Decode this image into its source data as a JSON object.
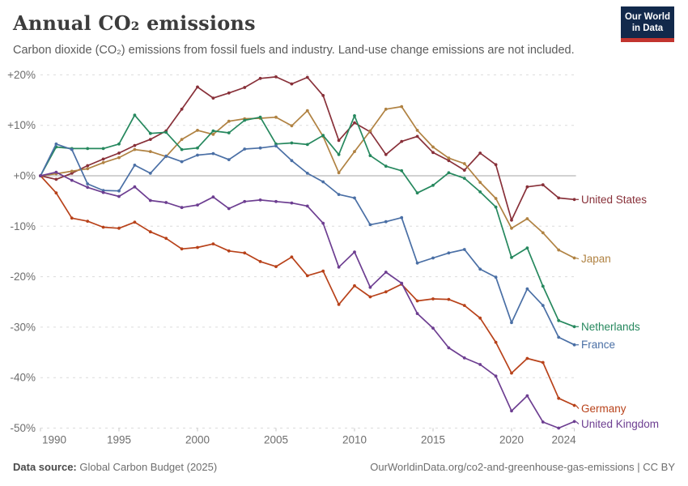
{
  "header": {
    "title": "Annual CO₂ emissions",
    "subtitle": "Carbon dioxide (CO₂) emissions from fossil fuels and industry. Land-use change emissions are not included.",
    "logo": {
      "line1": "Our World",
      "line2": "in Data",
      "bg_color": "#12294b",
      "bar_color": "#c2352f"
    }
  },
  "footer": {
    "datasource_label": "Data source:",
    "datasource_value": " Global Carbon Budget (2025)",
    "right_text": "OurWorldinData.org/co2-and-greenhouse-gas-emissions | CC BY"
  },
  "chart_data": {
    "type": "line",
    "title": "Annual CO₂ emissions",
    "xlabel": "",
    "ylabel": "",
    "x_range": [
      1990,
      2024
    ],
    "y_range": [
      -50,
      20
    ],
    "grid": true,
    "legend_position": "end-of-line-labels",
    "x": [
      1990,
      1991,
      1992,
      1993,
      1994,
      1995,
      1996,
      1997,
      1998,
      1999,
      2000,
      2001,
      2002,
      2003,
      2004,
      2005,
      2006,
      2007,
      2008,
      2009,
      2010,
      2011,
      2012,
      2013,
      2014,
      2015,
      2016,
      2017,
      2018,
      2019,
      2020,
      2021,
      2022,
      2023,
      2024
    ],
    "x_ticks": [
      1990,
      1995,
      2000,
      2005,
      2010,
      2015,
      2020,
      2024
    ],
    "y_ticks": [
      20,
      10,
      0,
      -10,
      -20,
      -30,
      -40,
      -50
    ],
    "y_tick_labels": [
      "+20%",
      "+10%",
      "+0%",
      "-10%",
      "-20%",
      "-30%",
      "-40%",
      "-50%"
    ],
    "series": [
      {
        "name": "United States",
        "color": "#883039",
        "values": [
          0,
          -0.7,
          0.5,
          2.0,
          3.3,
          4.5,
          6.0,
          7.2,
          8.9,
          13.2,
          17.6,
          15.4,
          16.4,
          17.5,
          19.3,
          19.6,
          18.2,
          19.5,
          15.9,
          7.0,
          10.5,
          8.7,
          4.2,
          6.8,
          7.8,
          4.6,
          3.0,
          1.1,
          4.5,
          2.2,
          -8.8,
          -2.2,
          -1.8,
          -4.4,
          -4.7
        ]
      },
      {
        "name": "Japan",
        "color": "#B08242",
        "values": [
          0,
          0.4,
          0.9,
          1.4,
          2.6,
          3.6,
          5.2,
          4.8,
          3.8,
          7.2,
          9.0,
          8.2,
          10.8,
          11.3,
          11.4,
          11.6,
          9.9,
          12.9,
          7.8,
          0.6,
          4.8,
          8.9,
          13.2,
          13.7,
          9.0,
          5.7,
          3.5,
          2.4,
          -1.3,
          -4.5,
          -10.4,
          -8.5,
          -11.3,
          -14.7,
          -16.3
        ]
      },
      {
        "name": "Netherlands",
        "color": "#26885E",
        "values": [
          0,
          5.7,
          5.4,
          5.4,
          5.4,
          6.3,
          12.0,
          8.4,
          8.6,
          5.2,
          5.5,
          8.9,
          8.5,
          11.0,
          11.6,
          6.3,
          6.5,
          6.2,
          8.0,
          4.2,
          11.9,
          4.0,
          1.9,
          1.0,
          -3.4,
          -1.9,
          0.6,
          -0.5,
          -3.2,
          -6.2,
          -16.2,
          -14.3,
          -21.9,
          -28.7,
          -29.9
        ]
      },
      {
        "name": "France",
        "color": "#4A6FA5",
        "values": [
          0,
          6.3,
          5.2,
          -1.6,
          -2.9,
          -3.0,
          2.1,
          0.5,
          3.9,
          2.8,
          4.1,
          4.4,
          3.2,
          5.3,
          5.5,
          5.9,
          3.0,
          0.5,
          -1.2,
          -3.7,
          -4.4,
          -9.7,
          -9.1,
          -8.3,
          -17.3,
          -16.3,
          -15.3,
          -14.6,
          -18.5,
          -20.1,
          -29.1,
          -22.4,
          -25.7,
          -32.0,
          -33.5
        ]
      },
      {
        "name": "Germany",
        "color": "#B8421A",
        "values": [
          0,
          -3.4,
          -8.4,
          -9.0,
          -10.2,
          -10.4,
          -9.2,
          -11.1,
          -12.4,
          -14.5,
          -14.2,
          -13.5,
          -14.9,
          -15.3,
          -17.0,
          -18.0,
          -16.1,
          -19.8,
          -18.9,
          -25.5,
          -21.8,
          -24.0,
          -23.0,
          -21.5,
          -24.8,
          -24.4,
          -24.5,
          -25.7,
          -28.2,
          -33.0,
          -39.1,
          -36.2,
          -37.0,
          -44.1,
          -45.5
        ]
      },
      {
        "name": "United Kingdom",
        "color": "#6D3E91",
        "values": [
          0,
          0.7,
          -0.9,
          -2.3,
          -3.3,
          -4.1,
          -2.2,
          -4.9,
          -5.3,
          -6.3,
          -5.8,
          -4.2,
          -6.5,
          -5.1,
          -4.8,
          -5.1,
          -5.4,
          -6.0,
          -9.4,
          -18.1,
          -15.1,
          -22.1,
          -19.1,
          -21.3,
          -27.3,
          -30.2,
          -34.1,
          -36.1,
          -37.4,
          -39.7,
          -46.6,
          -43.6,
          -48.8,
          -50.0,
          -48.7
        ]
      }
    ]
  }
}
